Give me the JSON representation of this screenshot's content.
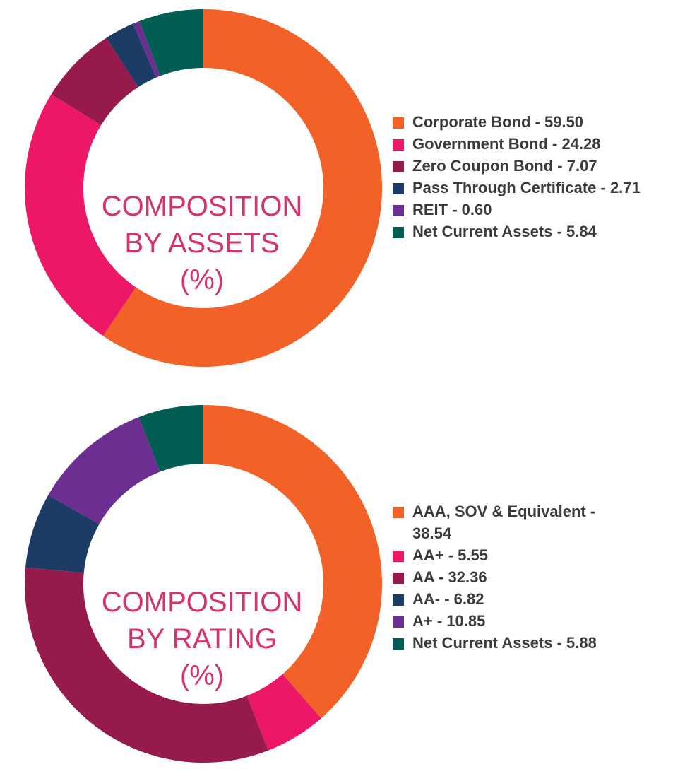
{
  "chart_data": [
    {
      "type": "pie",
      "variant": "donut",
      "title_lines": [
        "COMPOSITION",
        "BY ASSETS",
        "(%)"
      ],
      "slices": [
        {
          "label": "Corporate Bond - 59.50",
          "name": "Corporate Bond",
          "value": 59.5,
          "color": "#f26128"
        },
        {
          "label": "Government Bond - 24.28",
          "name": "Government Bond",
          "value": 24.28,
          "color": "#ec1767"
        },
        {
          "label": "Zero Coupon Bond - 7.07",
          "name": "Zero Coupon Bond",
          "value": 7.07,
          "color": "#961b4c"
        },
        {
          "label": "Pass Through Certificate - 2.71",
          "name": "Pass Through Certificate",
          "value": 2.71,
          "color": "#1d3c65"
        },
        {
          "label": "REIT - 0.60",
          "name": "REIT",
          "value": 0.6,
          "color": "#6d2e92"
        },
        {
          "label": "Net Current Assets - 5.84",
          "name": "Net Current Assets",
          "value": 5.84,
          "color": "#025e52"
        }
      ],
      "legend_position": "right"
    },
    {
      "type": "pie",
      "variant": "donut",
      "title_lines": [
        "COMPOSITION",
        "BY RATING",
        "(%)"
      ],
      "slices": [
        {
          "label": "AAA, SOV & Equivalent - 38.54",
          "name": "AAA, SOV & Equivalent",
          "value": 38.54,
          "color": "#f26128"
        },
        {
          "label": "AA+ - 5.55",
          "name": "AA+",
          "value": 5.55,
          "color": "#ec1767"
        },
        {
          "label": "AA - 32.36",
          "name": "AA",
          "value": 32.36,
          "color": "#961b4c"
        },
        {
          "label": "AA- - 6.82",
          "name": "AA-",
          "value": 6.82,
          "color": "#1d3c65"
        },
        {
          "label": "A+ - 10.85",
          "name": "A+",
          "value": 10.85,
          "color": "#6d2e92"
        },
        {
          "label": "Net Current Assets - 5.88",
          "name": "Net Current Assets",
          "value": 5.88,
          "color": "#025e52"
        }
      ],
      "legend_position": "right"
    }
  ]
}
